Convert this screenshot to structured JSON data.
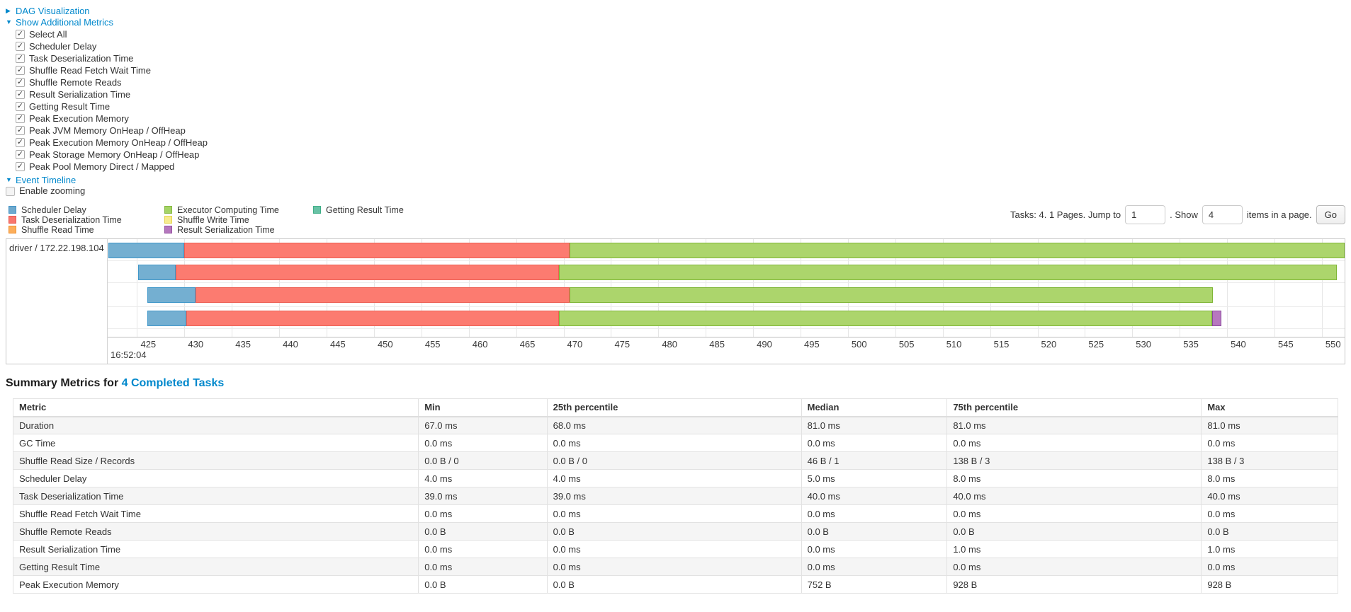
{
  "icons": {
    "collapsed_arrow": "▶",
    "expanded_arrow": "▼",
    "check": "✓"
  },
  "panel": {
    "dag_label": "DAG Visualization",
    "metrics_label": "Show Additional Metrics",
    "event_timeline_label": "Event Timeline",
    "enable_zooming_label": "Enable zooming",
    "checkboxes": [
      {
        "label": "Select All",
        "checked": true
      },
      {
        "label": "Scheduler Delay",
        "checked": true
      },
      {
        "label": "Task Deserialization Time",
        "checked": true
      },
      {
        "label": "Shuffle Read Fetch Wait Time",
        "checked": true
      },
      {
        "label": "Shuffle Remote Reads",
        "checked": true
      },
      {
        "label": "Result Serialization Time",
        "checked": true
      },
      {
        "label": "Getting Result Time",
        "checked": true
      },
      {
        "label": "Peak Execution Memory",
        "checked": true
      },
      {
        "label": "Peak JVM Memory OnHeap / OffHeap",
        "checked": true
      },
      {
        "label": "Peak Execution Memory OnHeap / OffHeap",
        "checked": true
      },
      {
        "label": "Peak Storage Memory OnHeap / OffHeap",
        "checked": true
      },
      {
        "label": "Peak Pool Memory Direct / Mapped",
        "checked": true
      }
    ]
  },
  "legend": {
    "columns": [
      [
        {
          "label": "Scheduler Delay",
          "color": "#6EA9CD",
          "border": "#4292C6"
        },
        {
          "label": "Task Deserialization Time",
          "color": "#F8766D",
          "border": "#E8564D"
        },
        {
          "label": "Shuffle Read Time",
          "color": "#FCAE5A",
          "border": "#F09030"
        }
      ],
      [
        {
          "label": "Executor Computing Time",
          "color": "#A4D465",
          "border": "#84B540"
        },
        {
          "label": "Shuffle Write Time",
          "color": "#F6EC8F",
          "border": "#E3D24B"
        },
        {
          "label": "Result Serialization Time",
          "color": "#B577BE",
          "border": "#934F9F"
        }
      ],
      [
        {
          "label": "Getting Result Time",
          "color": "#68C2A5",
          "border": "#3FAE87"
        }
      ]
    ]
  },
  "pagination": {
    "info_text": "Tasks: 4. 1 Pages. Jump to",
    "jump_value": "1",
    "show_label": ". Show",
    "show_value": "4",
    "suffix_text": "items in a page.",
    "go_label": "Go"
  },
  "chart_data": {
    "type": "timeline",
    "group_label": "driver / 172.22.198.104",
    "time_of_day_label": "16:52:04",
    "axis": {
      "unit": "ms",
      "min": 421.9,
      "max": 552.4,
      "tick_first": 425,
      "tick_step": 5,
      "tick_last": 550
    },
    "series_colors": {
      "scheduler_delay": {
        "fill": "#74AFD1",
        "border": "#3E96C9"
      },
      "task_deserialization": {
        "fill": "#FC7B70",
        "border": "#ED5E52"
      },
      "executor_computing": {
        "fill": "#ACD56C",
        "border": "#7FB636"
      },
      "result_serialization": {
        "fill": "#B777BF",
        "border": "#87499B"
      }
    },
    "tasks": [
      {
        "segments": [
          {
            "name": "scheduler_delay",
            "start": 422.0,
            "end": 430.0
          },
          {
            "name": "task_deserialization",
            "start": 430.0,
            "end": 470.6
          },
          {
            "name": "executor_computing",
            "start": 470.6,
            "end": 552.4
          }
        ]
      },
      {
        "segments": [
          {
            "name": "scheduler_delay",
            "start": 425.1,
            "end": 429.1
          },
          {
            "name": "task_deserialization",
            "start": 429.1,
            "end": 469.5
          },
          {
            "name": "executor_computing",
            "start": 469.5,
            "end": 551.6
          }
        ]
      },
      {
        "segments": [
          {
            "name": "scheduler_delay",
            "start": 426.1,
            "end": 431.2
          },
          {
            "name": "task_deserialization",
            "start": 431.2,
            "end": 470.6
          },
          {
            "name": "executor_computing",
            "start": 470.6,
            "end": 538.5
          }
        ]
      },
      {
        "segments": [
          {
            "name": "scheduler_delay",
            "start": 426.1,
            "end": 430.2
          },
          {
            "name": "task_deserialization",
            "start": 430.2,
            "end": 469.5
          },
          {
            "name": "executor_computing",
            "start": 469.5,
            "end": 538.4
          },
          {
            "name": "result_serialization",
            "start": 538.4,
            "end": 539.4
          }
        ]
      }
    ]
  },
  "summary": {
    "title_prefix": "Summary Metrics for ",
    "title_link": "4 Completed Tasks",
    "table": {
      "headers": [
        "Metric",
        "Min",
        "25th percentile",
        "Median",
        "75th percentile",
        "Max"
      ],
      "rows": [
        [
          "Duration",
          "67.0 ms",
          "68.0 ms",
          "81.0 ms",
          "81.0 ms",
          "81.0 ms"
        ],
        [
          "GC Time",
          "0.0 ms",
          "0.0 ms",
          "0.0 ms",
          "0.0 ms",
          "0.0 ms"
        ],
        [
          "Shuffle Read Size / Records",
          "0.0 B / 0",
          "0.0 B / 0",
          "46 B / 1",
          "138 B / 3",
          "138 B / 3"
        ],
        [
          "Scheduler Delay",
          "4.0 ms",
          "4.0 ms",
          "5.0 ms",
          "8.0 ms",
          "8.0 ms"
        ],
        [
          "Task Deserialization Time",
          "39.0 ms",
          "39.0 ms",
          "40.0 ms",
          "40.0 ms",
          "40.0 ms"
        ],
        [
          "Shuffle Read Fetch Wait Time",
          "0.0 ms",
          "0.0 ms",
          "0.0 ms",
          "0.0 ms",
          "0.0 ms"
        ],
        [
          "Shuffle Remote Reads",
          "0.0 B",
          "0.0 B",
          "0.0 B",
          "0.0 B",
          "0.0 B"
        ],
        [
          "Result Serialization Time",
          "0.0 ms",
          "0.0 ms",
          "0.0 ms",
          "1.0 ms",
          "1.0 ms"
        ],
        [
          "Getting Result Time",
          "0.0 ms",
          "0.0 ms",
          "0.0 ms",
          "0.0 ms",
          "0.0 ms"
        ],
        [
          "Peak Execution Memory",
          "0.0 B",
          "0.0 B",
          "752 B",
          "928 B",
          "928 B"
        ]
      ]
    }
  }
}
